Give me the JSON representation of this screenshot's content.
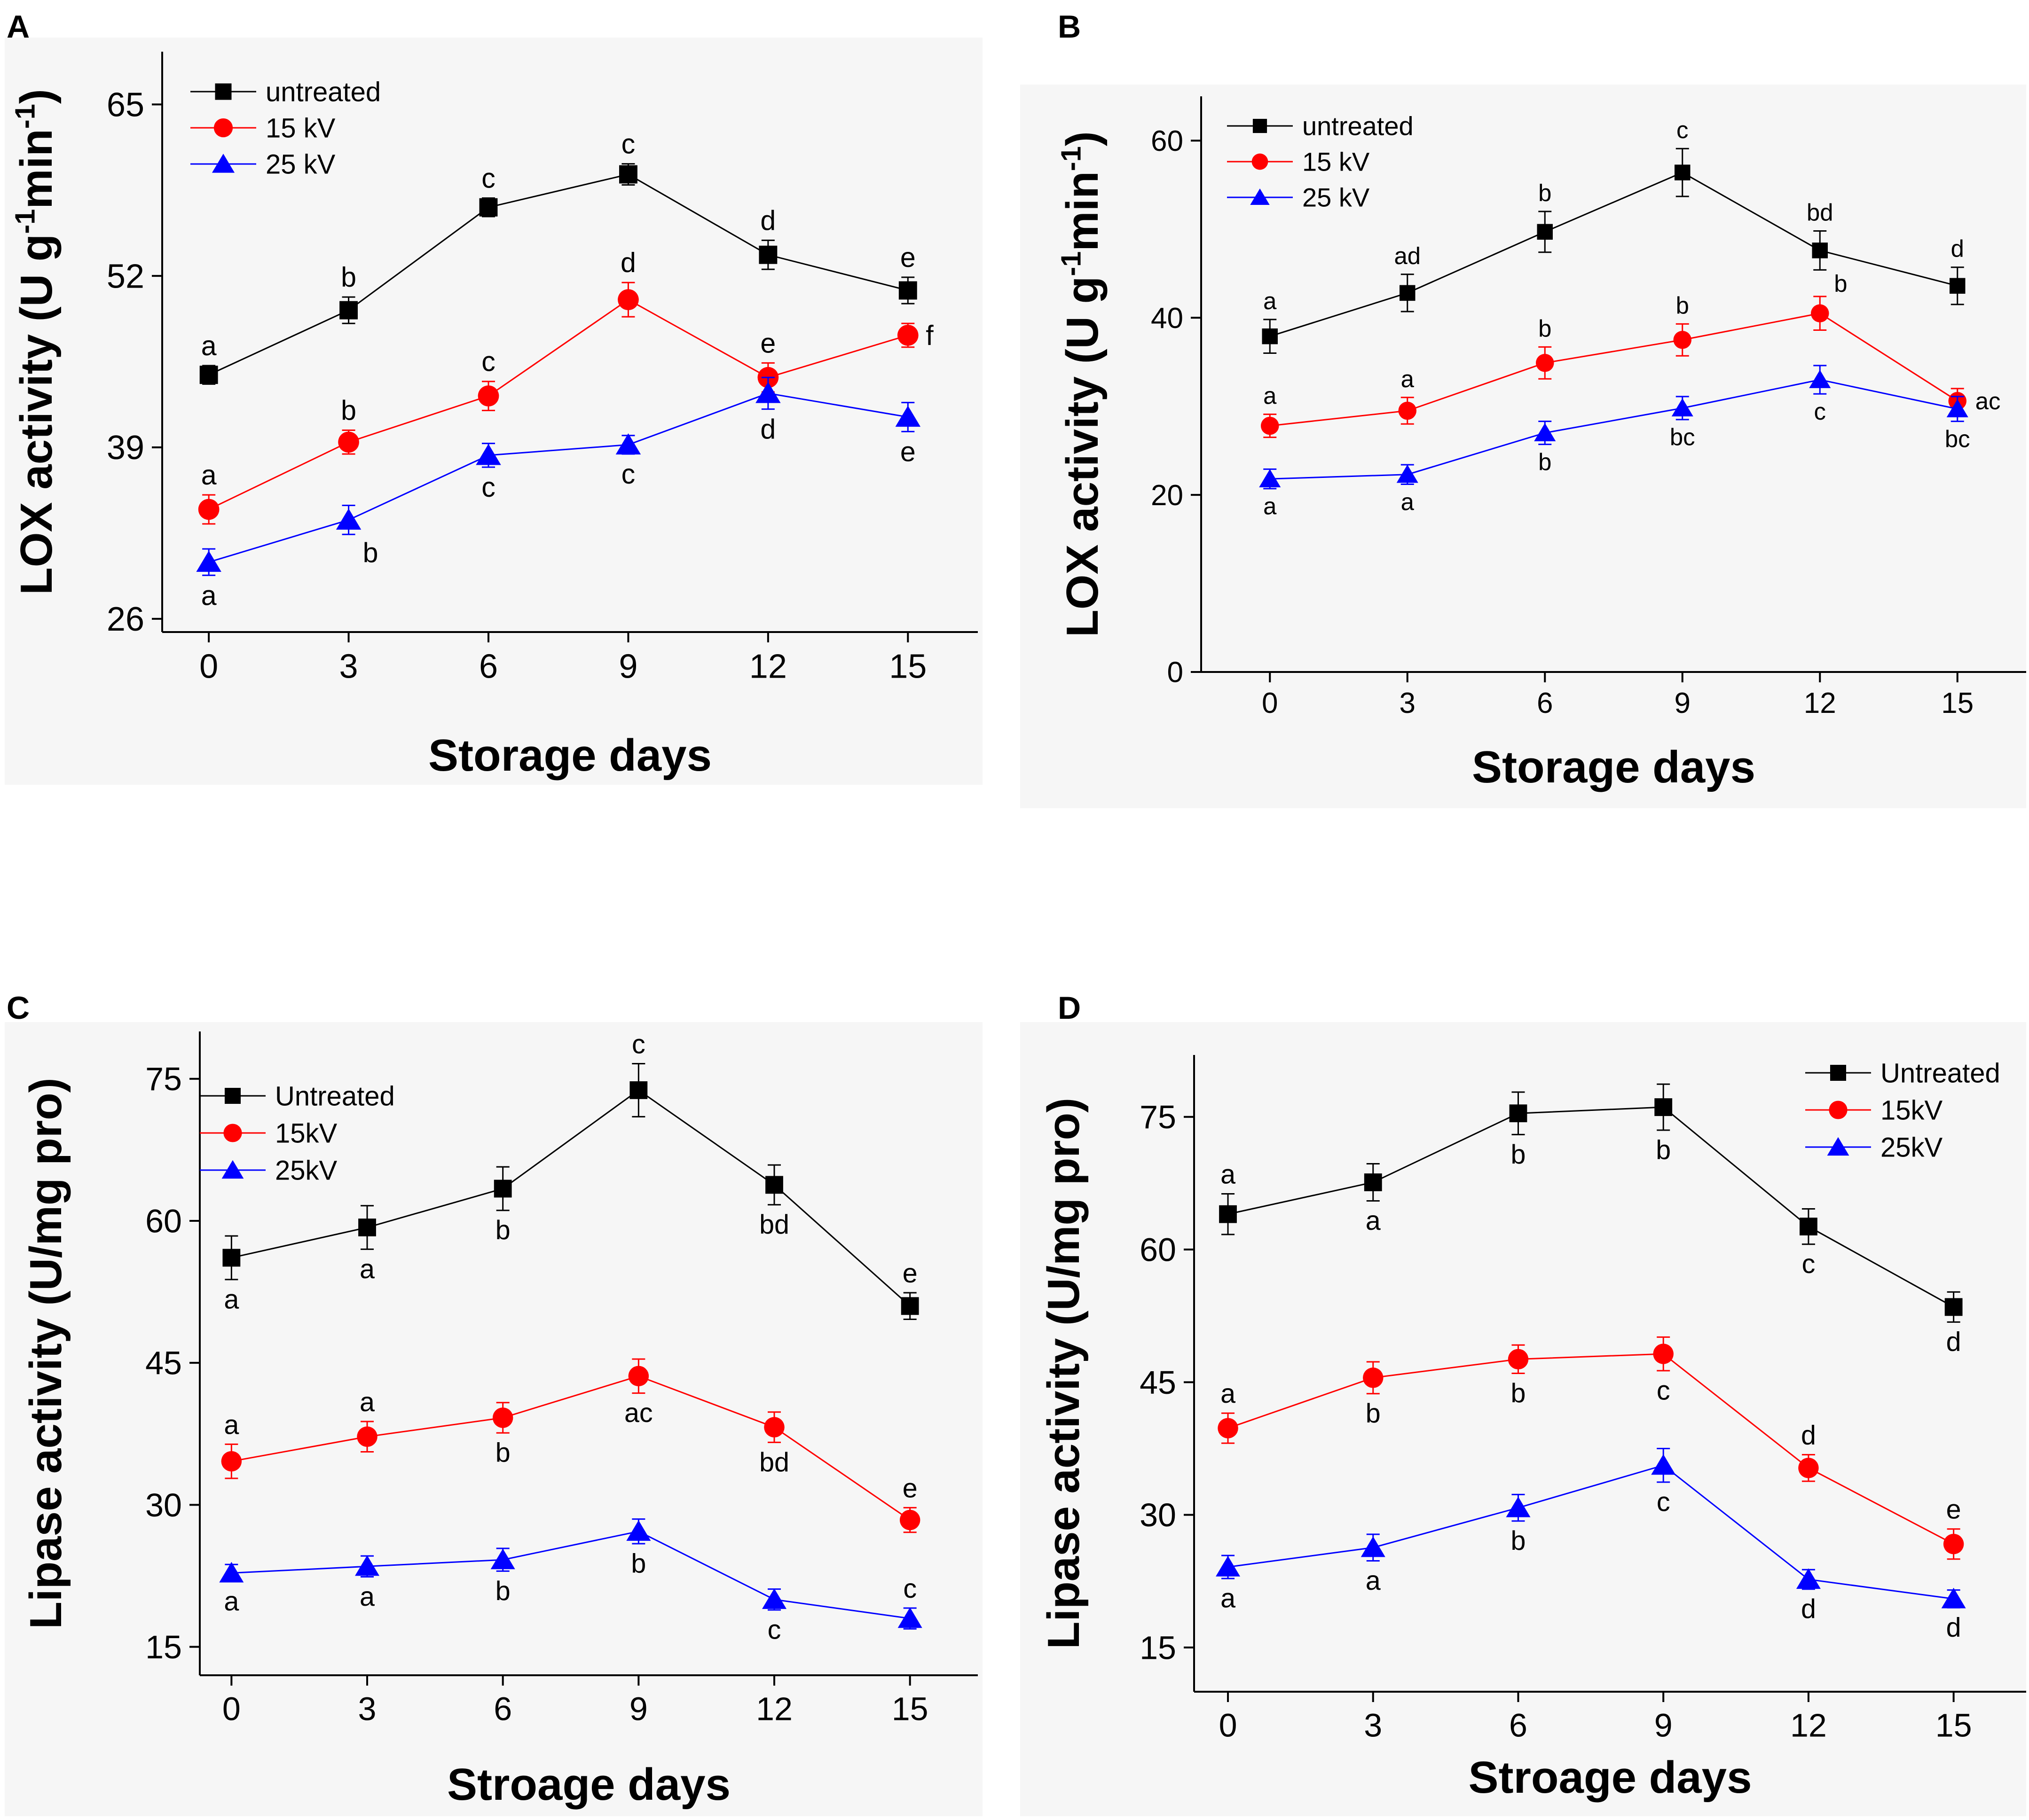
{
  "figure": {
    "colors": {
      "background": "#ffffff",
      "panel_bg": "#f6f6f6",
      "axis": "#000000"
    },
    "panels": [
      {
        "id": "A",
        "label": "A"
      },
      {
        "id": "B",
        "label": "B"
      },
      {
        "id": "C",
        "label": "C"
      },
      {
        "id": "D",
        "label": "D"
      }
    ]
  },
  "chart_data": [
    {
      "panel": "A",
      "type": "line",
      "xlabel": "Storage days",
      "ylabel_parts": [
        "LOX activity (U g",
        "-1",
        "min",
        "-1",
        ")"
      ],
      "x": [
        0,
        3,
        6,
        9,
        12,
        15
      ],
      "xlim": [
        -1,
        16.5
      ],
      "ylim": [
        25,
        69
      ],
      "yticks": [
        26,
        39,
        52,
        65
      ],
      "xticks": [
        0,
        3,
        6,
        9,
        12,
        15
      ],
      "legend": "top-left",
      "series": [
        {
          "name": "untreated",
          "color": "#000000",
          "marker": "square",
          "values": [
            44.5,
            49.4,
            57.2,
            59.7,
            53.6,
            50.9
          ],
          "errors": [
            0.7,
            1.0,
            0.7,
            0.8,
            1.1,
            1.0
          ],
          "letters": [
            "a",
            "b",
            "c",
            "c",
            "d",
            "e"
          ],
          "letter_pos": [
            "above",
            "above",
            "above",
            "above",
            "above",
            "above"
          ]
        },
        {
          "name": "15 kV",
          "color": "#ff0000",
          "marker": "circle",
          "values": [
            34.3,
            39.4,
            42.9,
            50.2,
            44.3,
            47.5
          ],
          "errors": [
            1.1,
            0.9,
            1.1,
            1.3,
            1.1,
            0.9
          ],
          "letters": [
            "a",
            "b",
            "c",
            "d",
            "e",
            "f"
          ],
          "letter_pos": [
            "above",
            "above",
            "above",
            "above",
            "above",
            "right"
          ]
        },
        {
          "name": "25 kV",
          "color": "#0000ff",
          "marker": "triangle",
          "values": [
            30.3,
            33.5,
            38.4,
            39.2,
            43.1,
            41.3
          ],
          "errors": [
            1.0,
            1.1,
            0.9,
            0.7,
            1.2,
            1.1
          ],
          "letters": [
            "a",
            "b",
            "c",
            "c",
            "d",
            "e"
          ],
          "letter_pos": [
            "below",
            "below-right",
            "below",
            "below",
            "below",
            "below"
          ]
        }
      ]
    },
    {
      "panel": "B",
      "type": "line",
      "xlabel": "Storage days",
      "ylabel_parts": [
        "LOX activity (U g",
        "-1",
        "min",
        "-1",
        ")"
      ],
      "x": [
        0,
        3,
        6,
        9,
        12,
        15
      ],
      "xlim": [
        -1.5,
        16.5
      ],
      "ylim": [
        0,
        65
      ],
      "yticks": [
        0,
        20,
        40,
        60
      ],
      "xticks": [
        0,
        3,
        6,
        9,
        12,
        15
      ],
      "legend": "top-left",
      "series": [
        {
          "name": "untreated",
          "color": "#000000",
          "marker": "square",
          "values": [
            37.9,
            42.8,
            49.7,
            56.4,
            47.6,
            43.6
          ],
          "errors": [
            1.9,
            2.1,
            2.3,
            2.7,
            2.2,
            2.1
          ],
          "letters": [
            "a",
            "ad",
            "b",
            "c",
            "bd",
            "d"
          ],
          "letter_pos": [
            "above",
            "above",
            "above",
            "above",
            "above",
            "above"
          ]
        },
        {
          "name": "15 kV",
          "color": "#ff0000",
          "marker": "circle",
          "values": [
            27.8,
            29.5,
            34.9,
            37.5,
            40.5,
            30.6
          ],
          "errors": [
            1.3,
            1.5,
            1.8,
            1.8,
            1.9,
            1.4
          ],
          "letters": [
            "a",
            "a",
            "b",
            "b",
            "b",
            "ac"
          ],
          "letter_pos": [
            "above",
            "above",
            "above",
            "above",
            "above-right",
            "right"
          ]
        },
        {
          "name": "25 kV",
          "color": "#0000ff",
          "marker": "triangle",
          "values": [
            21.8,
            22.3,
            27.0,
            29.8,
            33.0,
            29.7
          ],
          "errors": [
            1.1,
            1.1,
            1.3,
            1.3,
            1.6,
            1.4
          ],
          "letters": [
            "a",
            "a",
            "b",
            "bc",
            "c",
            "bc"
          ],
          "letter_pos": [
            "below",
            "below",
            "below",
            "below",
            "below",
            "below"
          ]
        }
      ]
    },
    {
      "panel": "C",
      "type": "line",
      "xlabel": "Stroage days",
      "ylabel_parts": [
        "Lipase activity (U/mg pro)"
      ],
      "x": [
        0,
        3,
        6,
        9,
        12,
        15
      ],
      "xlim": [
        -0.7,
        16.5
      ],
      "ylim": [
        12,
        80
      ],
      "yticks": [
        15,
        30,
        45,
        60,
        75
      ],
      "xticks": [
        0,
        3,
        6,
        9,
        12,
        15
      ],
      "legend": "top-left",
      "series": [
        {
          "name": "Untreated",
          "color": "#000000",
          "marker": "square",
          "values": [
            56.1,
            59.3,
            63.4,
            73.8,
            63.8,
            51.0
          ],
          "errors": [
            2.3,
            2.3,
            2.3,
            2.8,
            2.1,
            1.4
          ],
          "letters": [
            "a",
            "a",
            "b",
            "c",
            "bd",
            "e"
          ],
          "letter_pos": [
            "below",
            "below",
            "below",
            "above",
            "below",
            "above"
          ]
        },
        {
          "name": "15kV",
          "color": "#ff0000",
          "marker": "circle",
          "values": [
            34.6,
            37.2,
            39.2,
            43.6,
            38.2,
            28.4
          ],
          "errors": [
            1.8,
            1.6,
            1.6,
            1.8,
            1.6,
            1.3
          ],
          "letters": [
            "a",
            "a",
            "b",
            "ac",
            "bd",
            "e"
          ],
          "letter_pos": [
            "above",
            "above",
            "below",
            "below",
            "below",
            "above"
          ]
        },
        {
          "name": "25kV",
          "color": "#0000ff",
          "marker": "triangle",
          "values": [
            22.8,
            23.5,
            24.2,
            27.2,
            20.0,
            18.0
          ],
          "errors": [
            0.9,
            1.1,
            1.2,
            1.3,
            1.1,
            1.1
          ],
          "letters": [
            "a",
            "a",
            "b",
            "b",
            "c",
            "c"
          ],
          "letter_pos": [
            "below",
            "below",
            "below",
            "below",
            "below",
            "above"
          ]
        }
      ]
    },
    {
      "panel": "D",
      "type": "line",
      "xlabel": "Stroage days",
      "ylabel_parts": [
        "Lipase activity (U/mg pro)"
      ],
      "x": [
        0,
        3,
        6,
        9,
        12,
        15
      ],
      "xlim": [
        -0.7,
        16.5
      ],
      "ylim": [
        10,
        82
      ],
      "yticks": [
        15,
        30,
        45,
        60,
        75
      ],
      "xticks": [
        0,
        3,
        6,
        9,
        12,
        15
      ],
      "legend": "top-right",
      "series": [
        {
          "name": "Untreated",
          "color": "#000000",
          "marker": "square",
          "values": [
            64.0,
            67.6,
            75.4,
            76.1,
            62.6,
            53.5
          ],
          "errors": [
            2.3,
            2.1,
            2.4,
            2.6,
            2.0,
            1.7
          ],
          "letters": [
            "a",
            "a",
            "b",
            "b",
            "c",
            "d"
          ],
          "letter_pos": [
            "above",
            "below",
            "below",
            "below",
            "below",
            "below"
          ]
        },
        {
          "name": "15kV",
          "color": "#ff0000",
          "marker": "circle",
          "values": [
            39.8,
            45.5,
            47.6,
            48.2,
            35.3,
            26.7
          ],
          "errors": [
            1.7,
            1.8,
            1.6,
            1.9,
            1.5,
            1.7
          ],
          "letters": [
            "a",
            "b",
            "b",
            "c",
            "d",
            "e"
          ],
          "letter_pos": [
            "above",
            "below",
            "below",
            "below",
            "above",
            "above"
          ]
        },
        {
          "name": "25kV",
          "color": "#0000ff",
          "marker": "triangle",
          "values": [
            24.1,
            26.3,
            30.8,
            35.6,
            22.7,
            20.5
          ],
          "errors": [
            1.3,
            1.5,
            1.5,
            1.9,
            1.1,
            1.0
          ],
          "letters": [
            "a",
            "a",
            "b",
            "c",
            "d",
            "d"
          ],
          "letter_pos": [
            "below",
            "below",
            "below",
            "below",
            "below",
            "below"
          ]
        }
      ]
    }
  ]
}
